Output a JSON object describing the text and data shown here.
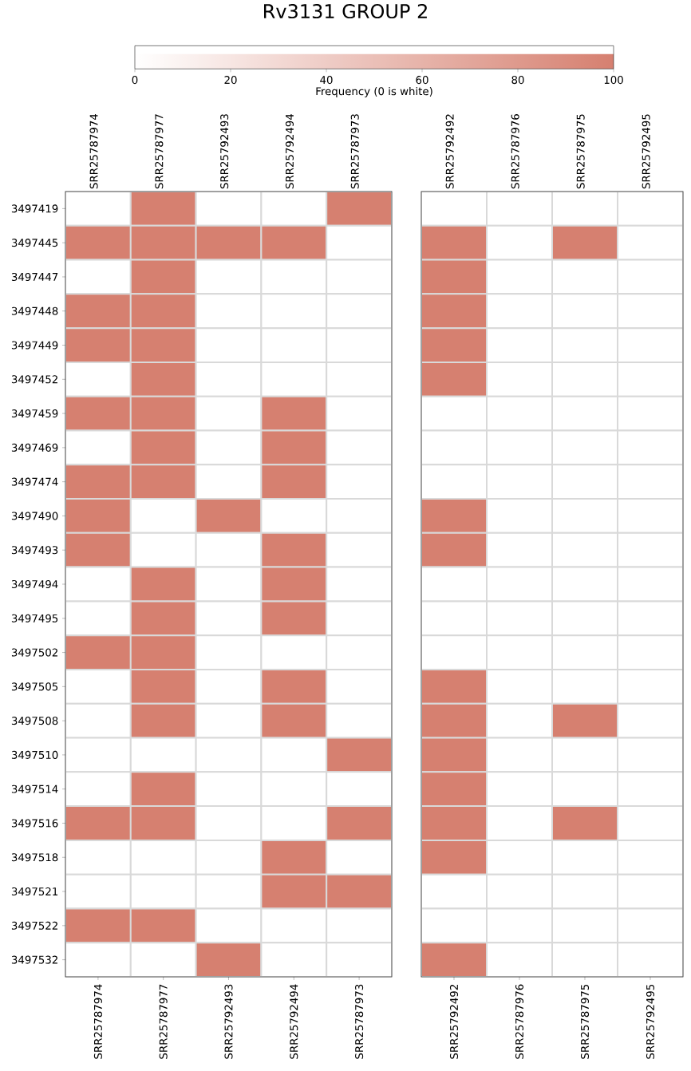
{
  "chart_data": {
    "type": "heatmap",
    "title": "Rv3131 GROUP 2",
    "clabel": "Frequency (0 is white)",
    "clim": [
      0,
      100
    ],
    "cticks": [
      0,
      20,
      40,
      60,
      80,
      100
    ],
    "categories": [
      "SRR25787974",
      "SRR25787977",
      "SRR25792493",
      "SRR25792494",
      "SRR25787973",
      "SRR25792492",
      "SRR25787976",
      "SRR25787975",
      "SRR25792495"
    ],
    "y_categories": [
      "3497419",
      "3497445",
      "3497447",
      "3497448",
      "3497449",
      "3497452",
      "3497459",
      "3497469",
      "3497474",
      "3497490",
      "3497493",
      "3497494",
      "3497495",
      "3497502",
      "3497505",
      "3497508",
      "3497510",
      "3497514",
      "3497516",
      "3497518",
      "3497521",
      "3497522",
      "3497532"
    ],
    "cells": [
      [
        0,
        100,
        0,
        0,
        100,
        0,
        0,
        0,
        0
      ],
      [
        100,
        100,
        100,
        100,
        0,
        100,
        0,
        100,
        0
      ],
      [
        0,
        100,
        0,
        0,
        0,
        100,
        0,
        0,
        0
      ],
      [
        100,
        100,
        0,
        0,
        0,
        100,
        0,
        0,
        0
      ],
      [
        100,
        100,
        0,
        0,
        0,
        100,
        0,
        0,
        0
      ],
      [
        0,
        100,
        0,
        0,
        0,
        100,
        0,
        0,
        0
      ],
      [
        100,
        100,
        0,
        100,
        0,
        0,
        0,
        0,
        0
      ],
      [
        0,
        100,
        0,
        100,
        0,
        0,
        0,
        0,
        0
      ],
      [
        100,
        100,
        0,
        100,
        0,
        0,
        0,
        0,
        0
      ],
      [
        100,
        0,
        100,
        0,
        0,
        100,
        0,
        0,
        0
      ],
      [
        100,
        0,
        0,
        100,
        0,
        100,
        0,
        0,
        0
      ],
      [
        0,
        100,
        0,
        100,
        0,
        0,
        0,
        0,
        0
      ],
      [
        0,
        100,
        0,
        100,
        0,
        0,
        0,
        0,
        0
      ],
      [
        100,
        100,
        0,
        0,
        0,
        0,
        0,
        0,
        0
      ],
      [
        0,
        100,
        0,
        100,
        0,
        100,
        0,
        0,
        0
      ],
      [
        0,
        100,
        0,
        100,
        0,
        100,
        0,
        100,
        0
      ],
      [
        0,
        0,
        0,
        0,
        100,
        100,
        0,
        0,
        0
      ],
      [
        0,
        100,
        0,
        0,
        0,
        100,
        0,
        0,
        0
      ],
      [
        100,
        100,
        0,
        0,
        100,
        100,
        0,
        100,
        0
      ],
      [
        0,
        0,
        0,
        100,
        0,
        100,
        0,
        0,
        0
      ],
      [
        0,
        0,
        0,
        100,
        100,
        0,
        0,
        0,
        0
      ],
      [
        100,
        100,
        0,
        0,
        0,
        0,
        0,
        0,
        0
      ],
      [
        0,
        0,
        100,
        0,
        0,
        100,
        0,
        0,
        0
      ]
    ]
  }
}
